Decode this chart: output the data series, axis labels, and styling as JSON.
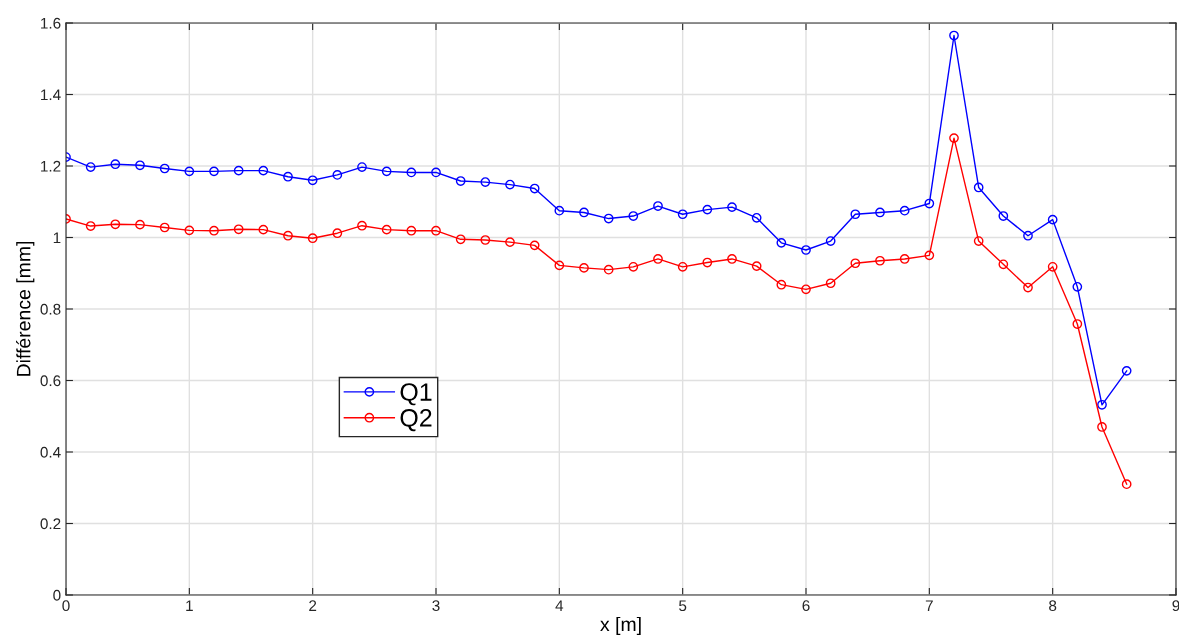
{
  "chart_data": {
    "type": "line",
    "xlabel": "x [m]",
    "ylabel": "Différence [mm]",
    "x": [
      0,
      0.2,
      0.4,
      0.6,
      0.8,
      1.0,
      1.2,
      1.4,
      1.6,
      1.8,
      2.0,
      2.2,
      2.4,
      2.6,
      2.8,
      3.0,
      3.2,
      3.4,
      3.6,
      3.8,
      4.0,
      4.2,
      4.4,
      4.6,
      4.8,
      5.0,
      5.2,
      5.4,
      5.6,
      5.8,
      6.0,
      6.2,
      6.4,
      6.6,
      6.8,
      7.0,
      7.2,
      7.4,
      7.6,
      7.8,
      8.0,
      8.2,
      8.4,
      8.6
    ],
    "series": [
      {
        "name": "Q1",
        "color": "#0000ff",
        "values": [
          1.225,
          1.197,
          1.205,
          1.202,
          1.193,
          1.185,
          1.185,
          1.187,
          1.187,
          1.17,
          1.16,
          1.175,
          1.197,
          1.185,
          1.182,
          1.182,
          1.158,
          1.155,
          1.148,
          1.137,
          1.075,
          1.07,
          1.053,
          1.06,
          1.088,
          1.065,
          1.078,
          1.085,
          1.055,
          0.985,
          0.965,
          0.99,
          1.065,
          1.07,
          1.075,
          1.095,
          1.565,
          1.14,
          1.06,
          1.005,
          1.05,
          0.862,
          0.532,
          0.627
        ]
      },
      {
        "name": "Q2",
        "color": "#ff0000",
        "values": [
          1.052,
          1.032,
          1.037,
          1.036,
          1.028,
          1.02,
          1.019,
          1.023,
          1.022,
          1.005,
          0.998,
          1.012,
          1.033,
          1.022,
          1.019,
          1.019,
          0.995,
          0.993,
          0.987,
          0.978,
          0.922,
          0.915,
          0.91,
          0.918,
          0.94,
          0.918,
          0.93,
          0.94,
          0.92,
          0.868,
          0.855,
          0.872,
          0.928,
          0.935,
          0.94,
          0.95,
          1.278,
          0.99,
          0.925,
          0.86,
          0.918,
          0.758,
          0.47,
          0.31
        ]
      }
    ],
    "xlim": [
      0,
      9
    ],
    "xticks": [
      0,
      1,
      2,
      3,
      4,
      5,
      6,
      7,
      8,
      9
    ],
    "ylim": [
      0,
      1.6
    ],
    "yticks": [
      0,
      0.2,
      0.4,
      0.6,
      0.8,
      1,
      1.2,
      1.4,
      1.6
    ],
    "grid": true,
    "legend": "bottom left",
    "marker": "circle",
    "line_style": "solid"
  }
}
